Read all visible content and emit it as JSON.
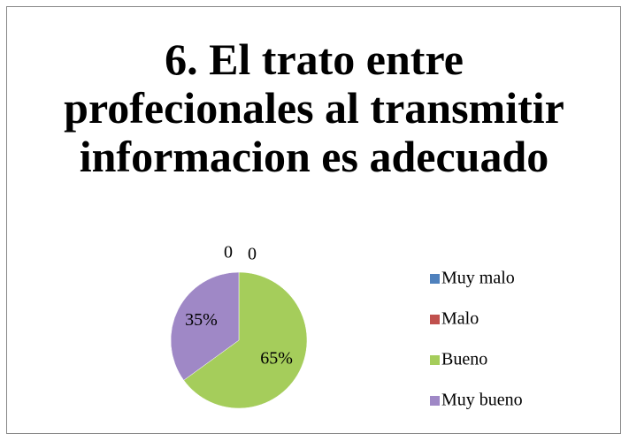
{
  "chart_data": {
    "type": "pie",
    "title": "6. El trato entre profecionales al transmitir informacion es adecuado",
    "categories": [
      "Muy malo",
      "Malo",
      "Bueno",
      "Muy bueno"
    ],
    "values": [
      0,
      0,
      65,
      35
    ],
    "value_labels": [
      "0",
      "0",
      "65%",
      "35%"
    ],
    "colors": [
      "#4f81bd",
      "#c0504d",
      "#a5cd5b",
      "#9f88c6"
    ],
    "legend": "right"
  }
}
